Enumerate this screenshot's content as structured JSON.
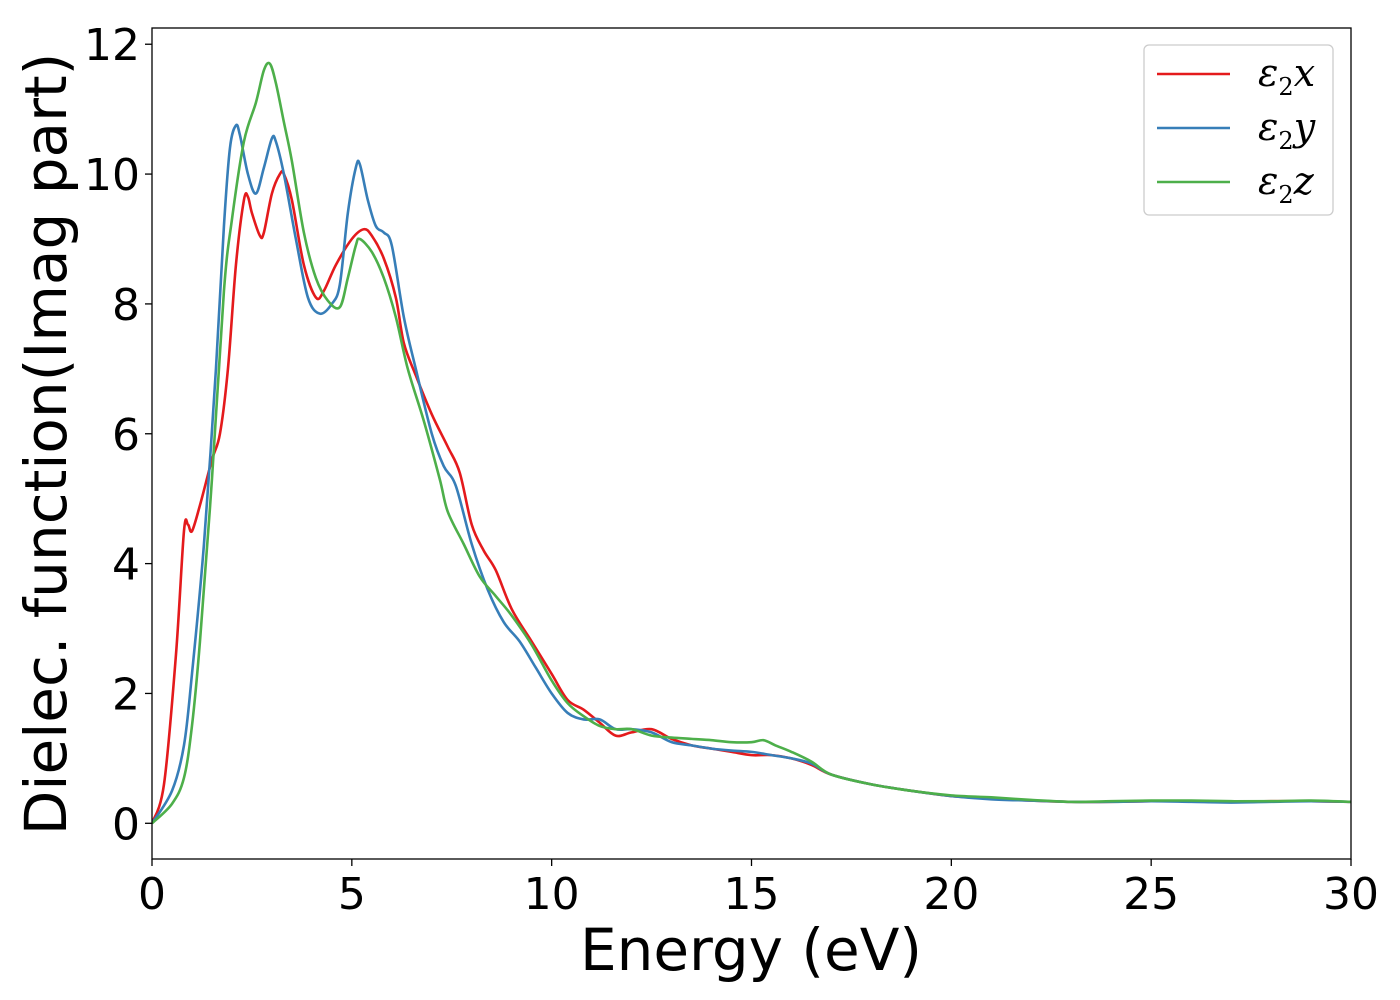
{
  "chart_data": {
    "type": "line",
    "title": "",
    "xlabel": "Energy (eV)",
    "ylabel": "Dielec. function(Imag part)",
    "xlim": [
      0,
      30
    ],
    "ylim": [
      -0.55,
      12.25
    ],
    "xticks": [
      0,
      5,
      10,
      15,
      20,
      25,
      30
    ],
    "yticks": [
      0,
      2,
      4,
      6,
      8,
      10,
      12
    ],
    "grid": false,
    "legend_position": "top-right",
    "series": [
      {
        "name": "ε2x",
        "legend_base": "ε",
        "legend_sub": "2",
        "legend_var": "x",
        "color": "#e41a1c",
        "points": [
          [
            0,
            0
          ],
          [
            0.3,
            0.6
          ],
          [
            0.6,
            2.6
          ],
          [
            0.8,
            4.5
          ],
          [
            0.9,
            4.6
          ],
          [
            1.0,
            4.5
          ],
          [
            1.2,
            4.9
          ],
          [
            1.5,
            5.6
          ],
          [
            1.7,
            6.0
          ],
          [
            1.9,
            7.0
          ],
          [
            2.1,
            8.6
          ],
          [
            2.3,
            9.6
          ],
          [
            2.4,
            9.65
          ],
          [
            2.5,
            9.4
          ],
          [
            2.7,
            9.05
          ],
          [
            2.8,
            9.1
          ],
          [
            3.0,
            9.7
          ],
          [
            3.2,
            10.0
          ],
          [
            3.3,
            10.0
          ],
          [
            3.5,
            9.6
          ],
          [
            3.8,
            8.6
          ],
          [
            4.1,
            8.1
          ],
          [
            4.3,
            8.2
          ],
          [
            4.6,
            8.6
          ],
          [
            5.0,
            9.0
          ],
          [
            5.3,
            9.15
          ],
          [
            5.5,
            9.05
          ],
          [
            5.8,
            8.7
          ],
          [
            6.1,
            8.1
          ],
          [
            6.3,
            7.4
          ],
          [
            6.6,
            6.9
          ],
          [
            7.0,
            6.3
          ],
          [
            7.4,
            5.8
          ],
          [
            7.7,
            5.4
          ],
          [
            8.0,
            4.6
          ],
          [
            8.3,
            4.2
          ],
          [
            8.6,
            3.9
          ],
          [
            9.0,
            3.3
          ],
          [
            9.5,
            2.8
          ],
          [
            10.0,
            2.3
          ],
          [
            10.4,
            1.9
          ],
          [
            10.8,
            1.75
          ],
          [
            11.2,
            1.55
          ],
          [
            11.6,
            1.35
          ],
          [
            12.0,
            1.4
          ],
          [
            12.5,
            1.45
          ],
          [
            13.0,
            1.3
          ],
          [
            13.5,
            1.2
          ],
          [
            14.0,
            1.15
          ],
          [
            14.5,
            1.1
          ],
          [
            15.0,
            1.05
          ],
          [
            15.5,
            1.05
          ],
          [
            16.0,
            1.0
          ],
          [
            16.5,
            0.9
          ],
          [
            17.0,
            0.75
          ],
          [
            18.0,
            0.6
          ],
          [
            19.0,
            0.5
          ],
          [
            20.0,
            0.42
          ],
          [
            21.0,
            0.38
          ],
          [
            22.0,
            0.35
          ],
          [
            23.0,
            0.33
          ],
          [
            24.0,
            0.33
          ],
          [
            25.0,
            0.34
          ],
          [
            26.0,
            0.34
          ],
          [
            27.0,
            0.33
          ],
          [
            28.0,
            0.34
          ],
          [
            29.0,
            0.34
          ],
          [
            30.0,
            0.33
          ]
        ]
      },
      {
        "name": "ε2y",
        "legend_base": "ε",
        "legend_sub": "2",
        "legend_var": "y",
        "color": "#377eb8",
        "points": [
          [
            0,
            0
          ],
          [
            0.5,
            0.5
          ],
          [
            0.8,
            1.2
          ],
          [
            1.0,
            2.3
          ],
          [
            1.3,
            4.3
          ],
          [
            1.6,
            7.0
          ],
          [
            1.8,
            9.2
          ],
          [
            1.95,
            10.4
          ],
          [
            2.1,
            10.75
          ],
          [
            2.2,
            10.6
          ],
          [
            2.4,
            10.0
          ],
          [
            2.6,
            9.7
          ],
          [
            2.8,
            10.1
          ],
          [
            3.0,
            10.55
          ],
          [
            3.1,
            10.5
          ],
          [
            3.3,
            10.0
          ],
          [
            3.6,
            9.0
          ],
          [
            3.9,
            8.1
          ],
          [
            4.2,
            7.85
          ],
          [
            4.5,
            8.0
          ],
          [
            4.7,
            8.3
          ],
          [
            4.9,
            9.4
          ],
          [
            5.1,
            10.1
          ],
          [
            5.2,
            10.15
          ],
          [
            5.4,
            9.6
          ],
          [
            5.6,
            9.2
          ],
          [
            5.8,
            9.1
          ],
          [
            6.0,
            8.9
          ],
          [
            6.3,
            7.8
          ],
          [
            6.6,
            7.0
          ],
          [
            7.0,
            6.0
          ],
          [
            7.3,
            5.5
          ],
          [
            7.6,
            5.2
          ],
          [
            8.0,
            4.3
          ],
          [
            8.4,
            3.6
          ],
          [
            8.8,
            3.1
          ],
          [
            9.2,
            2.8
          ],
          [
            9.6,
            2.4
          ],
          [
            10.0,
            2.0
          ],
          [
            10.4,
            1.7
          ],
          [
            10.8,
            1.6
          ],
          [
            11.2,
            1.6
          ],
          [
            11.6,
            1.45
          ],
          [
            12.0,
            1.45
          ],
          [
            12.5,
            1.4
          ],
          [
            13.0,
            1.25
          ],
          [
            13.5,
            1.2
          ],
          [
            14.0,
            1.15
          ],
          [
            14.5,
            1.12
          ],
          [
            15.0,
            1.1
          ],
          [
            15.5,
            1.05
          ],
          [
            16.0,
            1.0
          ],
          [
            16.5,
            0.92
          ],
          [
            17.0,
            0.75
          ],
          [
            18.0,
            0.6
          ],
          [
            19.0,
            0.5
          ],
          [
            20.0,
            0.42
          ],
          [
            21.0,
            0.37
          ],
          [
            22.0,
            0.35
          ],
          [
            23.0,
            0.33
          ],
          [
            24.0,
            0.33
          ],
          [
            25.0,
            0.34
          ],
          [
            26.0,
            0.33
          ],
          [
            27.0,
            0.32
          ],
          [
            28.0,
            0.33
          ],
          [
            29.0,
            0.34
          ],
          [
            30.0,
            0.33
          ]
        ]
      },
      {
        "name": "ε2z",
        "legend_base": "ε",
        "legend_sub": "2",
        "legend_var": "z",
        "color": "#4daf4a",
        "points": [
          [
            0,
            0
          ],
          [
            0.5,
            0.3
          ],
          [
            0.8,
            0.7
          ],
          [
            1.0,
            1.5
          ],
          [
            1.2,
            2.8
          ],
          [
            1.5,
            5.3
          ],
          [
            1.8,
            8.2
          ],
          [
            2.0,
            9.3
          ],
          [
            2.3,
            10.5
          ],
          [
            2.6,
            11.1
          ],
          [
            2.8,
            11.6
          ],
          [
            2.95,
            11.7
          ],
          [
            3.1,
            11.4
          ],
          [
            3.3,
            10.8
          ],
          [
            3.5,
            10.2
          ],
          [
            3.8,
            9.1
          ],
          [
            4.1,
            8.4
          ],
          [
            4.4,
            8.05
          ],
          [
            4.7,
            7.95
          ],
          [
            4.9,
            8.4
          ],
          [
            5.1,
            8.9
          ],
          [
            5.2,
            9.0
          ],
          [
            5.5,
            8.8
          ],
          [
            5.8,
            8.4
          ],
          [
            6.1,
            7.8
          ],
          [
            6.4,
            7.0
          ],
          [
            6.8,
            6.2
          ],
          [
            7.2,
            5.3
          ],
          [
            7.4,
            4.8
          ],
          [
            7.8,
            4.3
          ],
          [
            8.2,
            3.8
          ],
          [
            8.6,
            3.5
          ],
          [
            9.0,
            3.2
          ],
          [
            9.5,
            2.75
          ],
          [
            10.0,
            2.2
          ],
          [
            10.4,
            1.85
          ],
          [
            10.8,
            1.65
          ],
          [
            11.2,
            1.5
          ],
          [
            11.6,
            1.45
          ],
          [
            12.0,
            1.45
          ],
          [
            12.5,
            1.35
          ],
          [
            13.0,
            1.32
          ],
          [
            13.5,
            1.3
          ],
          [
            14.0,
            1.28
          ],
          [
            14.5,
            1.25
          ],
          [
            15.0,
            1.25
          ],
          [
            15.3,
            1.28
          ],
          [
            15.6,
            1.2
          ],
          [
            16.0,
            1.1
          ],
          [
            16.5,
            0.95
          ],
          [
            17.0,
            0.75
          ],
          [
            18.0,
            0.6
          ],
          [
            19.0,
            0.5
          ],
          [
            20.0,
            0.43
          ],
          [
            21.0,
            0.4
          ],
          [
            22.0,
            0.36
          ],
          [
            23.0,
            0.33
          ],
          [
            24.0,
            0.34
          ],
          [
            25.0,
            0.35
          ],
          [
            26.0,
            0.35
          ],
          [
            27.0,
            0.34
          ],
          [
            28.0,
            0.34
          ],
          [
            29.0,
            0.35
          ],
          [
            30.0,
            0.33
          ]
        ]
      }
    ]
  }
}
